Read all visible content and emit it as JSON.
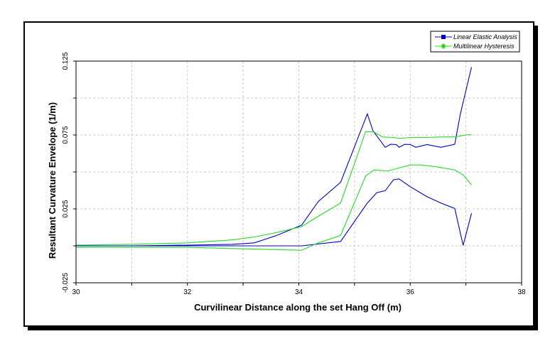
{
  "chart_data": {
    "type": "line",
    "title": "",
    "xlabel": "Curvilinear Distance along the set Hang Off (m)",
    "ylabel": "Resultant Curvature Envelope (1/m)",
    "xlim": [
      30,
      38
    ],
    "ylim": [
      -0.025,
      0.125
    ],
    "x_ticks": [
      30,
      32,
      34,
      36,
      38
    ],
    "x_tick_labels": [
      "30",
      "32",
      "34",
      "36",
      "38"
    ],
    "y_ticks": [
      -0.025,
      0.025,
      0.075,
      0.125
    ],
    "y_tick_labels": [
      "-0.025",
      "0.025",
      "0.075",
      "0.125"
    ],
    "grid": true,
    "legend_position": "top-right",
    "series": [
      {
        "name": "Linear Elastic Analysis",
        "color": "#0000cc",
        "marker": "square",
        "lines": [
          {
            "x": [
              30,
              31,
              32,
              32.8,
              33.2,
              33.6,
              34.05,
              34.35,
              34.75,
              35.23,
              35.33,
              35.55,
              35.65,
              35.75,
              35.8,
              35.9,
              36.0,
              36.1,
              36.3,
              36.55,
              36.8,
              36.9,
              37.1
            ],
            "y": [
              0.0,
              0.0,
              0.0005,
              0.001,
              0.002,
              0.007,
              0.014,
              0.03,
              0.043,
              0.0893,
              0.078,
              0.0667,
              0.0687,
              0.0685,
              0.0667,
              0.0687,
              0.0685,
              0.0667,
              0.0685,
              0.0667,
              0.0687,
              0.0893,
              0.1209
            ]
          },
          {
            "x": [
              30,
              31,
              32,
              33.0,
              34.05,
              34.75,
              35.23,
              35.4,
              35.55,
              35.7,
              35.8,
              36.0,
              36.3,
              36.55,
              36.8,
              36.95,
              37.1
            ],
            "y": [
              0.0,
              0.0,
              0.0,
              0.0,
              0.0,
              0.003,
              0.029,
              0.036,
              0.0373,
              0.0447,
              0.0453,
              0.04,
              0.0333,
              0.029,
              0.0253,
              0.0003,
              0.022
            ]
          }
        ]
      },
      {
        "name": "Multilinear Hysteresis",
        "color": "#22dd22",
        "marker": "diamond",
        "lines": [
          {
            "x": [
              30,
              31,
              32,
              32.8,
              33.2,
              33.6,
              34.05,
              34.35,
              34.75,
              35.2,
              35.35,
              35.5,
              35.7,
              35.8,
              36.0,
              36.3,
              36.55,
              36.8,
              37.0,
              37.1
            ],
            "y": [
              0.0005,
              0.001,
              0.002,
              0.004,
              0.006,
              0.009,
              0.013,
              0.02,
              0.029,
              0.0773,
              0.077,
              0.0737,
              0.0733,
              0.0727,
              0.0733,
              0.0733,
              0.0737,
              0.0737,
              0.075,
              0.0753
            ]
          },
          {
            "x": [
              30,
              31,
              32,
              33.0,
              34.05,
              34.35,
              34.75,
              35.2,
              35.35,
              35.6,
              35.8,
              36.0,
              36.2,
              36.5,
              36.8,
              36.95,
              37.1
            ],
            "y": [
              -0.001,
              -0.001,
              -0.001,
              -0.002,
              -0.003,
              0.002,
              0.007,
              0.0473,
              0.0513,
              0.0507,
              0.0527,
              0.0547,
              0.0547,
              0.0533,
              0.0513,
              0.048,
              0.0413
            ]
          }
        ]
      }
    ]
  }
}
